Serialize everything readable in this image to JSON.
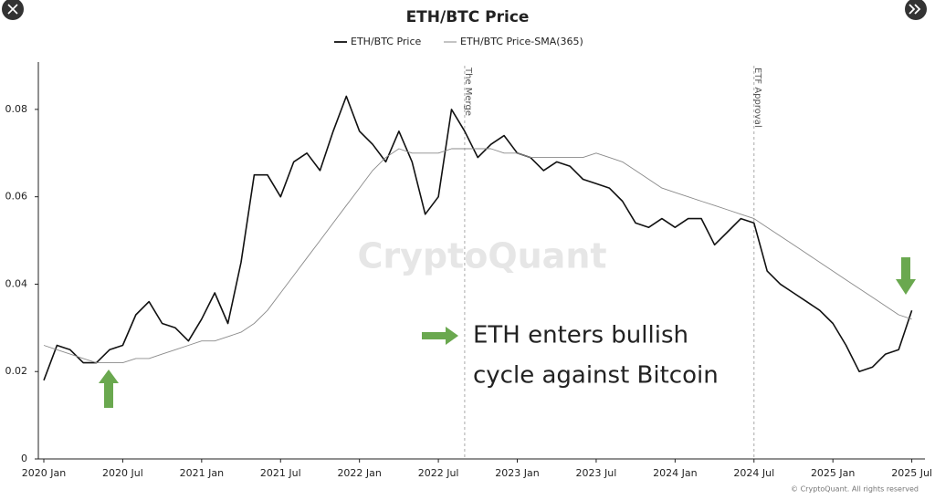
{
  "chart_data": {
    "type": "line",
    "title": "ETH/BTC Price",
    "x": [
      "2020-01",
      "2020-02",
      "2020-03",
      "2020-04",
      "2020-05",
      "2020-06",
      "2020-07",
      "2020-08",
      "2020-09",
      "2020-10",
      "2020-11",
      "2020-12",
      "2021-01",
      "2021-02",
      "2021-03",
      "2021-04",
      "2021-05",
      "2021-06",
      "2021-07",
      "2021-08",
      "2021-09",
      "2021-10",
      "2021-11",
      "2021-12",
      "2022-01",
      "2022-02",
      "2022-03",
      "2022-04",
      "2022-05",
      "2022-06",
      "2022-07",
      "2022-08",
      "2022-09",
      "2022-10",
      "2022-11",
      "2022-12",
      "2023-01",
      "2023-02",
      "2023-03",
      "2023-04",
      "2023-05",
      "2023-06",
      "2023-07",
      "2023-08",
      "2023-09",
      "2023-10",
      "2023-11",
      "2023-12",
      "2024-01",
      "2024-02",
      "2024-03",
      "2024-04",
      "2024-05",
      "2024-06",
      "2024-07",
      "2024-08",
      "2024-09",
      "2024-10",
      "2024-11",
      "2024-12",
      "2025-01",
      "2025-02",
      "2025-03",
      "2025-04",
      "2025-05",
      "2025-06",
      "2025-07"
    ],
    "series": [
      {
        "name": "ETH/BTC Price",
        "color": "#111111",
        "values": [
          0.018,
          0.026,
          0.025,
          0.022,
          0.022,
          0.025,
          0.026,
          0.033,
          0.036,
          0.031,
          0.03,
          0.027,
          0.032,
          0.038,
          0.031,
          0.045,
          0.065,
          0.065,
          0.06,
          0.068,
          0.07,
          0.066,
          0.075,
          0.083,
          0.075,
          0.072,
          0.068,
          0.075,
          0.068,
          0.056,
          0.06,
          0.08,
          0.075,
          0.069,
          0.072,
          0.074,
          0.07,
          0.069,
          0.066,
          0.068,
          0.067,
          0.064,
          0.063,
          0.062,
          0.059,
          0.054,
          0.053,
          0.055,
          0.053,
          0.055,
          0.055,
          0.049,
          0.052,
          0.055,
          0.054,
          0.043,
          0.04,
          0.038,
          0.036,
          0.034,
          0.031,
          0.026,
          0.02,
          0.021,
          0.024,
          0.025,
          0.034
        ]
      },
      {
        "name": "ETH/BTC Price-SMA(365)",
        "color": "#8a8a8a",
        "values": [
          0.026,
          0.025,
          0.024,
          0.023,
          0.022,
          0.022,
          0.022,
          0.023,
          0.023,
          0.024,
          0.025,
          0.026,
          0.027,
          0.027,
          0.028,
          0.029,
          0.031,
          0.034,
          0.038,
          0.042,
          0.046,
          0.05,
          0.054,
          0.058,
          0.062,
          0.066,
          0.069,
          0.071,
          0.07,
          0.07,
          0.07,
          0.071,
          0.071,
          0.071,
          0.071,
          0.07,
          0.07,
          0.069,
          0.069,
          0.069,
          0.069,
          0.069,
          0.07,
          0.069,
          0.068,
          0.066,
          0.064,
          0.062,
          0.061,
          0.06,
          0.059,
          0.058,
          0.057,
          0.056,
          0.055,
          0.053,
          0.051,
          0.049,
          0.047,
          0.045,
          0.043,
          0.041,
          0.039,
          0.037,
          0.035,
          0.033,
          0.032
        ]
      }
    ],
    "xlim": [
      "2020-01",
      "2025-08"
    ],
    "xticks": [
      {
        "value": "2020-01",
        "label": "2020 Jan"
      },
      {
        "value": "2020-07",
        "label": "2020 Jul"
      },
      {
        "value": "2021-01",
        "label": "2021 Jan"
      },
      {
        "value": "2021-07",
        "label": "2021 Jul"
      },
      {
        "value": "2022-01",
        "label": "2022 Jan"
      },
      {
        "value": "2022-07",
        "label": "2022 Jul"
      },
      {
        "value": "2023-01",
        "label": "2023 Jan"
      },
      {
        "value": "2023-07",
        "label": "2023 Jul"
      },
      {
        "value": "2024-01",
        "label": "2024 Jan"
      },
      {
        "value": "2024-07",
        "label": "2024 Jul"
      },
      {
        "value": "2025-01",
        "label": "2025 Jan"
      },
      {
        "value": "2025-07",
        "label": "2025 Jul"
      }
    ],
    "ylim": [
      0,
      0.09
    ],
    "yticks": [
      0,
      0.02,
      0.04,
      0.06,
      0.08
    ],
    "events": [
      {
        "x": "2022-09",
        "label": "The Merge"
      },
      {
        "x": "2024-07",
        "label": "ETF Approval"
      }
    ],
    "annotation": [
      "ETH enters bullish",
      "cycle against Bitcoin"
    ],
    "watermark": "CryptoQuant",
    "copyright": "© CryptoQuant. All rights reserved"
  }
}
